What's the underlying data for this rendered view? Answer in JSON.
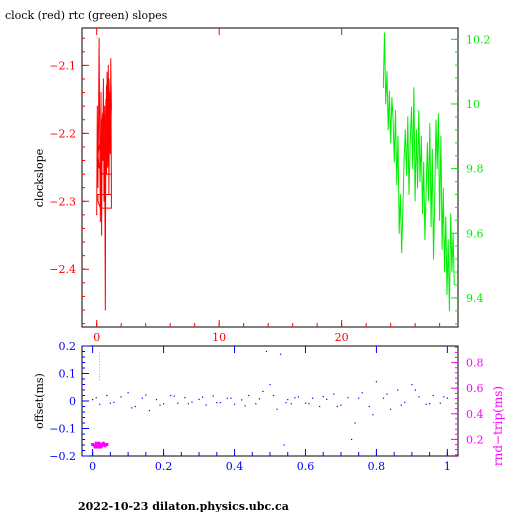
{
  "title": "clock (red) rtc (green) slopes",
  "footer": "2022-10-23  dilaton.physics.ubc.ca",
  "colors": {
    "frame": "#000000",
    "clock": "#ff0000",
    "rtc": "#00ee00",
    "offset": "#0000ff",
    "rtrip": "#ff00ff"
  },
  "chart_data": [
    {
      "type": "line",
      "title": "clock (red) rtc (green) slopes",
      "xlabel": "",
      "xlim": [
        -1.2,
        29.5
      ],
      "x_ticks": [
        0,
        10,
        20
      ],
      "x_tick_labels": [
        "0",
        "10",
        "20"
      ],
      "left_axis": {
        "label": "clockslope",
        "ylim": [
          -2.485,
          -2.045
        ],
        "ticks": [
          -2.1,
          -2.2,
          -2.3,
          -2.4
        ],
        "tick_labels": [
          "−2.1",
          "−2.2",
          "−2.3",
          "−2.4"
        ]
      },
      "right_axis": {
        "label": "",
        "ylim": [
          9.31,
          10.235
        ],
        "ticks": [
          10.2,
          10.0,
          9.8,
          9.6,
          9.4
        ],
        "tick_labels": [
          "10.2",
          "10",
          "9.8",
          "9.6",
          "9.4"
        ]
      },
      "series": [
        {
          "axis": "left",
          "x": [
            0.0,
            0.05,
            0.1,
            0.15,
            0.2,
            0.25,
            0.3,
            0.35,
            0.4,
            0.45,
            0.5,
            0.55,
            0.6,
            0.65,
            0.7,
            0.75,
            0.8,
            0.85,
            0.9,
            0.95,
            1.0,
            1.05,
            1.1,
            1.15,
            1.2,
            1.2,
            0.9,
            0.6,
            0.3,
            0.1,
            0.1,
            0.4,
            0.7,
            1.0,
            1.2,
            1.2,
            0.9,
            0.5,
            0.2,
            0.1,
            0.3,
            0.5,
            0.6,
            0.65,
            0.7,
            0.8,
            0.9,
            1.0,
            1.1,
            1.15,
            1.2,
            1.1
          ],
          "y": [
            -2.32,
            -2.16,
            -2.28,
            -2.19,
            -2.06,
            -2.22,
            -2.33,
            -2.14,
            -2.35,
            -2.18,
            -2.24,
            -2.12,
            -2.3,
            -2.2,
            -2.46,
            -2.15,
            -2.26,
            -2.11,
            -2.22,
            -2.1,
            -2.29,
            -2.14,
            -2.23,
            -2.09,
            -2.28,
            -2.31,
            -2.31,
            -2.31,
            -2.31,
            -2.3,
            -2.29,
            -2.29,
            -2.29,
            -2.29,
            -2.29,
            -2.26,
            -2.26,
            -2.26,
            -2.25,
            -2.23,
            -2.21,
            -2.17,
            -2.24,
            -2.16,
            -2.27,
            -2.13,
            -2.25,
            -2.12,
            -2.2,
            -2.1,
            -2.16,
            -2.22
          ]
        },
        {
          "axis": "right",
          "x": [
            23.4,
            23.5,
            23.6,
            23.7,
            23.8,
            23.9,
            24.0,
            24.1,
            24.2,
            24.3,
            24.4,
            24.5,
            24.6,
            24.7,
            24.8,
            24.9,
            25.0,
            25.1,
            25.2,
            25.3,
            25.4,
            25.5,
            25.6,
            25.7,
            25.8,
            25.9,
            26.0,
            26.1,
            26.2,
            26.3,
            26.4,
            26.5,
            26.6,
            26.7,
            26.8,
            26.9,
            27.0,
            27.1,
            27.2,
            27.3,
            27.4,
            27.5,
            27.6,
            27.7,
            27.8,
            27.9,
            28.0,
            28.1,
            28.2,
            28.3,
            28.4,
            28.5,
            28.6,
            28.7,
            28.8,
            28.9,
            29.0,
            29.1,
            29.2
          ],
          "y": [
            10.05,
            10.22,
            10.0,
            10.1,
            9.92,
            10.04,
            9.88,
            10.02,
            9.95,
            9.82,
            9.98,
            9.75,
            9.9,
            9.6,
            9.72,
            9.54,
            9.68,
            9.83,
            9.92,
            9.78,
            9.96,
            9.72,
            9.88,
            9.99,
            9.8,
            10.05,
            9.7,
            9.92,
            9.74,
            9.98,
            9.76,
            9.9,
            9.66,
            9.82,
            9.58,
            9.74,
            9.88,
            9.7,
            9.94,
            9.62,
            9.86,
            9.52,
            9.7,
            9.95,
            9.8,
            9.97,
            9.64,
            9.9,
            9.55,
            9.74,
            9.48,
            9.65,
            9.41,
            9.58,
            9.36,
            9.66,
            9.48,
            9.6,
            9.44
          ]
        }
      ]
    },
    {
      "type": "scatter",
      "xlabel": "",
      "xlim": [
        -0.03,
        1.03
      ],
      "x_ticks": [
        0,
        0.2,
        0.4,
        0.6,
        0.8,
        1
      ],
      "x_tick_labels": [
        "0",
        "0.2",
        "0.4",
        "0.6",
        "0.8",
        "1"
      ],
      "left_axis": {
        "label": "offset(ms)",
        "ylim": [
          -0.2,
          0.2
        ],
        "ticks": [
          0.2,
          0.1,
          0,
          -0.1,
          -0.2
        ],
        "tick_labels": [
          "0.2",
          "0.1",
          "0",
          "−0.1",
          "−0.2"
        ]
      },
      "right_axis": {
        "label": "rnd−trip(ms)",
        "ylim": [
          0.07,
          0.93
        ],
        "ticks": [
          0.8,
          0.6,
          0.4,
          0.2
        ],
        "tick_labels": [
          "0.8",
          "0.6",
          "0.4",
          "0.2"
        ]
      },
      "series": [
        {
          "axis": "left",
          "x": [
            0.0,
            0.02,
            0.04,
            0.06,
            0.08,
            0.1,
            0.12,
            0.14,
            0.16,
            0.18,
            0.2,
            0.22,
            0.24,
            0.26,
            0.28,
            0.3,
            0.32,
            0.34,
            0.36,
            0.38,
            0.4,
            0.42,
            0.44,
            0.46,
            0.48,
            0.49,
            0.5,
            0.52,
            0.53,
            0.54,
            0.55,
            0.56,
            0.58,
            0.6,
            0.62,
            0.64,
            0.66,
            0.68,
            0.7,
            0.72,
            0.73,
            0.74,
            0.76,
            0.78,
            0.8,
            0.82,
            0.84,
            0.86,
            0.88,
            0.9,
            0.92,
            0.94,
            0.96,
            0.98,
            1.0,
            0.01,
            0.05,
            0.11,
            0.15,
            0.19,
            0.23,
            0.27,
            0.31,
            0.35,
            0.39,
            0.43,
            0.47,
            0.51,
            0.545,
            0.57,
            0.61,
            0.65,
            0.69,
            0.75,
            0.79,
            0.83,
            0.87,
            0.91,
            0.95,
            0.99
          ],
          "y": [
            0.005,
            -0.012,
            0.02,
            -0.005,
            0.015,
            0.03,
            -0.02,
            0.01,
            -0.035,
            0.005,
            -0.01,
            0.02,
            -0.008,
            0.012,
            -0.004,
            0.006,
            -0.015,
            0.018,
            -0.006,
            0.01,
            -0.012,
            0.004,
            0.02,
            -0.01,
            0.035,
            0.18,
            0.06,
            -0.03,
            0.17,
            -0.16,
            0.005,
            -0.01,
            0.015,
            -0.008,
            0.01,
            -0.02,
            0.006,
            0.025,
            -0.015,
            0.012,
            -0.14,
            -0.08,
            0.03,
            -0.02,
            0.07,
            0.01,
            -0.03,
            0.04,
            -0.005,
            0.06,
            0.015,
            -0.012,
            0.02,
            -0.008,
            0.01,
            0.012,
            -0.008,
            -0.025,
            0.022,
            -0.015,
            0.018,
            -0.01,
            0.014,
            -0.006,
            0.01,
            -0.018,
            0.008,
            0.02,
            -0.006,
            0.012,
            -0.01,
            0.016,
            -0.02,
            0.01,
            -0.05,
            0.025,
            -0.015,
            0.04,
            -0.01,
            0.015
          ]
        },
        {
          "axis": "right",
          "x": [
            0.0,
            0.005,
            0.01,
            0.015,
            0.02,
            0.025,
            0.03,
            0.035,
            0.04,
            0.008,
            0.018,
            0.028,
            0.012,
            0.022,
            0.032,
            0.02
          ],
          "y": [
            0.16,
            0.15,
            0.17,
            0.14,
            0.16,
            0.15,
            0.17,
            0.15,
            0.16,
            0.14,
            0.17,
            0.16,
            0.15,
            0.14,
            0.16,
            0.88
          ]
        }
      ]
    }
  ]
}
